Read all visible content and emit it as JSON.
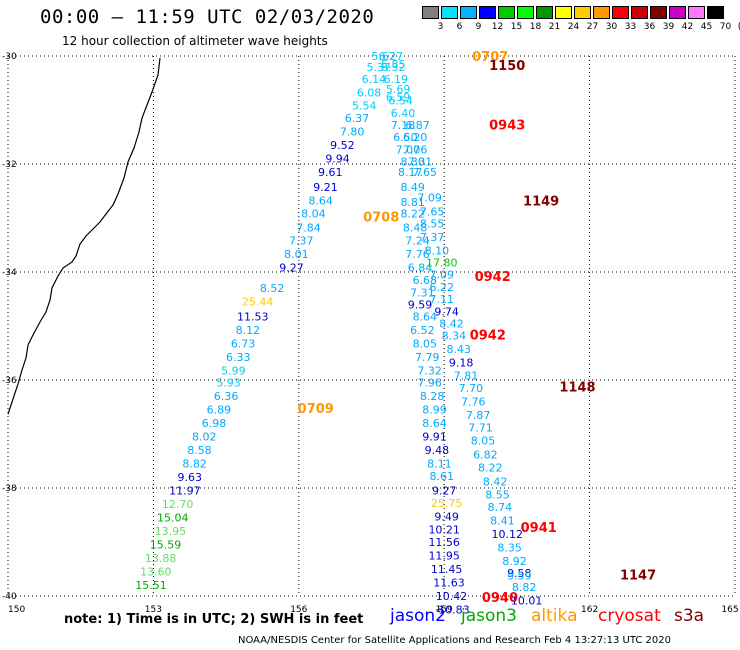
{
  "title": "00:00 – 11:59 UTC 02/03/2020",
  "subtitle": "12 hour collection of altimeter wave heights",
  "colorbar": {
    "labels": [
      "3",
      "6",
      "9",
      "12",
      "15",
      "18",
      "21",
      "24",
      "27",
      "30",
      "33",
      "36",
      "39",
      "42",
      "45",
      "70",
      "(ft)"
    ],
    "colors": [
      "#7f7f7f",
      "#00e5ff",
      "#00b4ff",
      "#0000ff",
      "#00cc00",
      "#00ff00",
      "#009900",
      "#ffff00",
      "#ffcc00",
      "#ff9900",
      "#ff0000",
      "#cc0000",
      "#800000",
      "#cc00cc",
      "#ff77ff",
      "#000000"
    ]
  },
  "footer": {
    "note": "note:  1) Time is in UTC;  2) SWH is in feet",
    "missions": [
      {
        "name": "jason2",
        "color": "#0000ff"
      },
      {
        "name": "jason3",
        "color": "#00aa00"
      },
      {
        "name": "altika",
        "color": "#ff9900"
      },
      {
        "name": "cryosat",
        "color": "#ff0000"
      },
      {
        "name": "s3a",
        "color": "#800000"
      }
    ],
    "credit": "NOAA/NESDIS Center for Satellite Applications and Research     Feb  4 13:27:13 UTC 2020"
  },
  "chart_data": {
    "type": "scatter",
    "xlim": [
      150,
      165
    ],
    "ylim": [
      -40,
      -30
    ],
    "x_ticks": [
      "150",
      "153",
      "156",
      "159",
      "162",
      "165"
    ],
    "y_ticks": [
      "-30",
      "-32",
      "-34",
      "-36",
      "-38",
      "-40"
    ],
    "grid": true,
    "track_labels": [
      {
        "text": "0707",
        "lon": 159.95,
        "lat": -30.0,
        "color": "#ff9900"
      },
      {
        "text": "1150",
        "lon": 160.3,
        "lat": -30.17,
        "color": "#800000"
      },
      {
        "text": "0943",
        "lon": 160.3,
        "lat": -31.27,
        "color": "#ff0000"
      },
      {
        "text": "1149",
        "lon": 161.0,
        "lat": -32.68,
        "color": "#800000"
      },
      {
        "text": "0708",
        "lon": 157.7,
        "lat": -32.97,
        "color": "#ff9900"
      },
      {
        "text": "0942",
        "lon": 160.0,
        "lat": -34.07,
        "color": "#ff0000"
      },
      {
        "text": "0942",
        "lon": 159.9,
        "lat": -35.16,
        "color": "#ff0000"
      },
      {
        "text": "1148",
        "lon": 161.75,
        "lat": -36.12,
        "color": "#800000"
      },
      {
        "text": "0709",
        "lon": 156.35,
        "lat": -36.52,
        "color": "#ff9900"
      },
      {
        "text": "0941",
        "lon": 160.95,
        "lat": -38.72,
        "color": "#ff0000"
      },
      {
        "text": "1147",
        "lon": 163.0,
        "lat": -39.6,
        "color": "#800000"
      },
      {
        "text": "0940",
        "lon": 160.15,
        "lat": -40.02,
        "color": "#ff0000"
      }
    ],
    "points": [
      {
        "lon": 157.75,
        "lat": -30.0,
        "v": "5.62",
        "c": "#00ccff"
      },
      {
        "lon": 157.9,
        "lat": -30.0,
        "v": "6.27",
        "c": "#00ccff"
      },
      {
        "lon": 157.65,
        "lat": -30.2,
        "v": "5.37",
        "c": "#00ccff"
      },
      {
        "lon": 157.95,
        "lat": -30.2,
        "v": "6.32",
        "c": "#00ccff"
      },
      {
        "lon": 157.95,
        "lat": -30.15,
        "v": "5.85",
        "c": "#00ccff"
      },
      {
        "lon": 157.55,
        "lat": -30.43,
        "v": "6.14",
        "c": "#00ccff"
      },
      {
        "lon": 158.0,
        "lat": -30.43,
        "v": "6.19",
        "c": "#00ccff"
      },
      {
        "lon": 157.45,
        "lat": -30.68,
        "v": "6.08",
        "c": "#00ccff"
      },
      {
        "lon": 158.05,
        "lat": -30.61,
        "v": "5.69",
        "c": "#00ccff"
      },
      {
        "lon": 158.05,
        "lat": -30.76,
        "v": "6.59",
        "c": "#00ccff"
      },
      {
        "lon": 157.35,
        "lat": -30.92,
        "v": "5.54",
        "c": "#00ccff"
      },
      {
        "lon": 158.1,
        "lat": -30.82,
        "v": "6.54",
        "c": "#00ccff"
      },
      {
        "lon": 158.15,
        "lat": -31.06,
        "v": "6.40",
        "c": "#00ccff"
      },
      {
        "lon": 157.2,
        "lat": -31.15,
        "v": "6.37",
        "c": "#00aaff"
      },
      {
        "lon": 158.15,
        "lat": -31.28,
        "v": "7.18",
        "c": "#00aaff"
      },
      {
        "lon": 158.45,
        "lat": -31.28,
        "v": "6.87",
        "c": "#00aaff"
      },
      {
        "lon": 157.1,
        "lat": -31.4,
        "v": "7.80",
        "c": "#00aaff"
      },
      {
        "lon": 158.2,
        "lat": -31.5,
        "v": "6.50",
        "c": "#00aaff"
      },
      {
        "lon": 158.4,
        "lat": -31.5,
        "v": "6.20",
        "c": "#00aaff"
      },
      {
        "lon": 156.9,
        "lat": -31.65,
        "v": "9.52",
        "c": "#0000cc"
      },
      {
        "lon": 158.25,
        "lat": -31.73,
        "v": "7.07",
        "c": "#00aaff"
      },
      {
        "lon": 158.4,
        "lat": -31.73,
        "v": "7.06",
        "c": "#00aaff"
      },
      {
        "lon": 156.8,
        "lat": -31.9,
        "v": "9.94",
        "c": "#0000cc"
      },
      {
        "lon": 158.35,
        "lat": -31.95,
        "v": "8.30",
        "c": "#00aaff"
      },
      {
        "lon": 158.5,
        "lat": -31.95,
        "v": "7.31",
        "c": "#00aaff"
      },
      {
        "lon": 156.65,
        "lat": -32.15,
        "v": "9.61",
        "c": "#0000cc"
      },
      {
        "lon": 158.3,
        "lat": -32.15,
        "v": "8.17",
        "c": "#00aaff"
      },
      {
        "lon": 158.6,
        "lat": -32.15,
        "v": "7.65",
        "c": "#00aaff"
      },
      {
        "lon": 156.55,
        "lat": -32.43,
        "v": "9.21",
        "c": "#0000cc"
      },
      {
        "lon": 158.35,
        "lat": -32.43,
        "v": "8.49",
        "c": "#00aaff"
      },
      {
        "lon": 156.45,
        "lat": -32.68,
        "v": "8.64",
        "c": "#00aaff"
      },
      {
        "lon": 158.35,
        "lat": -32.7,
        "v": "8.81",
        "c": "#00aaff"
      },
      {
        "lon": 158.7,
        "lat": -32.62,
        "v": "7.09",
        "c": "#00aaff"
      },
      {
        "lon": 156.3,
        "lat": -32.92,
        "v": "8.04",
        "c": "#00aaff"
      },
      {
        "lon": 158.35,
        "lat": -32.92,
        "v": "8.22",
        "c": "#00aaff"
      },
      {
        "lon": 158.75,
        "lat": -32.88,
        "v": "7.65",
        "c": "#00aaff"
      },
      {
        "lon": 156.2,
        "lat": -33.18,
        "v": "7.84",
        "c": "#00aaff"
      },
      {
        "lon": 158.4,
        "lat": -33.18,
        "v": "8.48",
        "c": "#00aaff"
      },
      {
        "lon": 158.75,
        "lat": -33.1,
        "v": "8.55",
        "c": "#00aaff"
      },
      {
        "lon": 156.05,
        "lat": -33.42,
        "v": "7.37",
        "c": "#00aaff"
      },
      {
        "lon": 158.45,
        "lat": -33.42,
        "v": "7.24",
        "c": "#00aaff"
      },
      {
        "lon": 158.75,
        "lat": -33.35,
        "v": "7.37",
        "c": "#00aaff"
      },
      {
        "lon": 155.95,
        "lat": -33.67,
        "v": "8.01",
        "c": "#00aaff"
      },
      {
        "lon": 158.45,
        "lat": -33.67,
        "v": "7.76",
        "c": "#00aaff"
      },
      {
        "lon": 158.85,
        "lat": -33.6,
        "v": "8.10",
        "c": "#00aaff"
      },
      {
        "lon": 155.85,
        "lat": -33.92,
        "v": "9.27",
        "c": "#0000cc"
      },
      {
        "lon": 158.5,
        "lat": -33.92,
        "v": "6.84",
        "c": "#00aaff"
      },
      {
        "lon": 158.95,
        "lat": -33.82,
        "v": "17.80",
        "c": "#00cc00"
      },
      {
        "lon": 158.6,
        "lat": -34.15,
        "v": "6.68",
        "c": "#00aaff"
      },
      {
        "lon": 158.95,
        "lat": -34.05,
        "v": "7.09",
        "c": "#00aaff"
      },
      {
        "lon": 158.95,
        "lat": -34.28,
        "v": "6.22",
        "c": "#00aaff"
      },
      {
        "lon": 155.45,
        "lat": -34.3,
        "v": "8.52",
        "c": "#00aaff"
      },
      {
        "lon": 158.55,
        "lat": -34.38,
        "v": "7.31",
        "c": "#00aaff"
      },
      {
        "lon": 155.15,
        "lat": -34.55,
        "v": "25.44",
        "c": "#ffcc00"
      },
      {
        "lon": 158.95,
        "lat": -34.5,
        "v": "7.11",
        "c": "#00aaff"
      },
      {
        "lon": 158.5,
        "lat": -34.6,
        "v": "9.59",
        "c": "#0000cc"
      },
      {
        "lon": 159.05,
        "lat": -34.73,
        "v": "9.74",
        "c": "#0000cc"
      },
      {
        "lon": 155.05,
        "lat": -34.82,
        "v": "11.53",
        "c": "#0000cc"
      },
      {
        "lon": 158.6,
        "lat": -34.82,
        "v": "8.64",
        "c": "#00aaff"
      },
      {
        "lon": 159.15,
        "lat": -34.95,
        "v": "8.42",
        "c": "#00aaff"
      },
      {
        "lon": 154.95,
        "lat": -35.07,
        "v": "8.12",
        "c": "#00aaff"
      },
      {
        "lon": 158.55,
        "lat": -35.07,
        "v": "6.52",
        "c": "#00aaff"
      },
      {
        "lon": 159.2,
        "lat": -35.18,
        "v": "8.34",
        "c": "#00aaff"
      },
      {
        "lon": 154.85,
        "lat": -35.32,
        "v": "6.73",
        "c": "#00aaff"
      },
      {
        "lon": 158.6,
        "lat": -35.32,
        "v": "8.05",
        "c": "#00aaff"
      },
      {
        "lon": 159.3,
        "lat": -35.43,
        "v": "8.43",
        "c": "#00aaff"
      },
      {
        "lon": 154.75,
        "lat": -35.57,
        "v": "6.33",
        "c": "#00aaff"
      },
      {
        "lon": 158.65,
        "lat": -35.57,
        "v": "7.79",
        "c": "#00aaff"
      },
      {
        "lon": 159.35,
        "lat": -35.68,
        "v": "9.18",
        "c": "#0000cc"
      },
      {
        "lon": 154.65,
        "lat": -35.82,
        "v": "5.99",
        "c": "#00ccff"
      },
      {
        "lon": 158.7,
        "lat": -35.82,
        "v": "7.32",
        "c": "#00aaff"
      },
      {
        "lon": 159.45,
        "lat": -35.92,
        "v": "7.81",
        "c": "#00aaff"
      },
      {
        "lon": 154.55,
        "lat": -36.05,
        "v": "5.93",
        "c": "#00ccff"
      },
      {
        "lon": 158.7,
        "lat": -36.05,
        "v": "7.96",
        "c": "#00aaff"
      },
      {
        "lon": 154.5,
        "lat": -36.3,
        "v": "6.36",
        "c": "#00aaff"
      },
      {
        "lon": 158.75,
        "lat": -36.3,
        "v": "8.28",
        "c": "#00aaff"
      },
      {
        "lon": 159.55,
        "lat": -36.15,
        "v": "7.70",
        "c": "#00aaff"
      },
      {
        "lon": 154.35,
        "lat": -36.55,
        "v": "6.89",
        "c": "#00aaff"
      },
      {
        "lon": 158.8,
        "lat": -36.55,
        "v": "8.99",
        "c": "#00aaff"
      },
      {
        "lon": 159.6,
        "lat": -36.4,
        "v": "7.76",
        "c": "#00aaff"
      },
      {
        "lon": 154.25,
        "lat": -36.8,
        "v": "6.98",
        "c": "#00aaff"
      },
      {
        "lon": 158.8,
        "lat": -36.8,
        "v": "8.64",
        "c": "#00aaff"
      },
      {
        "lon": 159.7,
        "lat": -36.65,
        "v": "7.87",
        "c": "#00aaff"
      },
      {
        "lon": 154.05,
        "lat": -37.05,
        "v": "8.02",
        "c": "#00aaff"
      },
      {
        "lon": 158.8,
        "lat": -37.05,
        "v": "9.91",
        "c": "#0000cc"
      },
      {
        "lon": 159.75,
        "lat": -36.88,
        "v": "7.71",
        "c": "#00aaff"
      },
      {
        "lon": 153.95,
        "lat": -37.3,
        "v": "8.58",
        "c": "#00aaff"
      },
      {
        "lon": 158.85,
        "lat": -37.3,
        "v": "9.48",
        "c": "#0000cc"
      },
      {
        "lon": 159.8,
        "lat": -37.12,
        "v": "8.05",
        "c": "#00aaff"
      },
      {
        "lon": 153.85,
        "lat": -37.55,
        "v": "8.82",
        "c": "#00aaff"
      },
      {
        "lon": 158.9,
        "lat": -37.55,
        "v": "8.11",
        "c": "#00aaff"
      },
      {
        "lon": 159.85,
        "lat": -37.38,
        "v": "6.82",
        "c": "#00aaff"
      },
      {
        "lon": 153.75,
        "lat": -37.8,
        "v": "9.63",
        "c": "#0000cc"
      },
      {
        "lon": 158.95,
        "lat": -37.78,
        "v": "8.61",
        "c": "#00aaff"
      },
      {
        "lon": 159.95,
        "lat": -37.62,
        "v": "8.22",
        "c": "#00aaff"
      },
      {
        "lon": 153.65,
        "lat": -38.05,
        "v": "11.97",
        "c": "#0000cc"
      },
      {
        "lon": 159.0,
        "lat": -38.05,
        "v": "9.27",
        "c": "#0000cc"
      },
      {
        "lon": 160.05,
        "lat": -37.88,
        "v": "8.42",
        "c": "#00aaff"
      },
      {
        "lon": 159.05,
        "lat": -38.28,
        "v": "25.75",
        "c": "#ffcc00"
      },
      {
        "lon": 160.1,
        "lat": -38.12,
        "v": "8.55",
        "c": "#00aaff"
      },
      {
        "lon": 153.5,
        "lat": -38.3,
        "v": "12.70",
        "c": "#66dd66"
      },
      {
        "lon": 159.05,
        "lat": -38.53,
        "v": "9.49",
        "c": "#0000cc"
      },
      {
        "lon": 160.15,
        "lat": -38.35,
        "v": "8.74",
        "c": "#00aaff"
      },
      {
        "lon": 153.4,
        "lat": -38.55,
        "v": "15.04",
        "c": "#00aa00"
      },
      {
        "lon": 159.0,
        "lat": -38.77,
        "v": "10.21",
        "c": "#0000cc"
      },
      {
        "lon": 160.2,
        "lat": -38.6,
        "v": "8.41",
        "c": "#00aaff"
      },
      {
        "lon": 153.35,
        "lat": -38.8,
        "v": "13.95",
        "c": "#66dd66"
      },
      {
        "lon": 159.0,
        "lat": -39.0,
        "v": "11.56",
        "c": "#0000cc"
      },
      {
        "lon": 160.3,
        "lat": -38.85,
        "v": "10.12",
        "c": "#0000cc"
      },
      {
        "lon": 153.25,
        "lat": -39.05,
        "v": "15.59",
        "c": "#00aa00"
      },
      {
        "lon": 159.0,
        "lat": -39.25,
        "v": "11.95",
        "c": "#0000cc"
      },
      {
        "lon": 160.35,
        "lat": -39.1,
        "v": "8.35",
        "c": "#00aaff"
      },
      {
        "lon": 153.15,
        "lat": -39.3,
        "v": "13.88",
        "c": "#66dd66"
      },
      {
        "lon": 159.05,
        "lat": -39.5,
        "v": "11.45",
        "c": "#0000cc"
      },
      {
        "lon": 160.45,
        "lat": -39.35,
        "v": "8.92",
        "c": "#00aaff"
      },
      {
        "lon": 153.05,
        "lat": -39.55,
        "v": "13.60",
        "c": "#66dd66"
      },
      {
        "lon": 159.1,
        "lat": -39.75,
        "v": "11.63",
        "c": "#0000cc"
      },
      {
        "lon": 160.55,
        "lat": -39.57,
        "v": "9.58",
        "c": "#0000cc"
      },
      {
        "lon": 160.55,
        "lat": -39.62,
        "v": "9.59",
        "c": "#00aaff"
      },
      {
        "lon": 152.95,
        "lat": -39.8,
        "v": "15.51",
        "c": "#00aa00"
      },
      {
        "lon": 159.15,
        "lat": -40.0,
        "v": "10.42",
        "c": "#0000cc"
      },
      {
        "lon": 160.65,
        "lat": -39.83,
        "v": "8.82",
        "c": "#00aaff"
      },
      {
        "lon": 159.2,
        "lat": -40.25,
        "v": "10.83",
        "c": "#0000cc"
      },
      {
        "lon": 160.7,
        "lat": -40.08,
        "v": "10.01",
        "c": "#0000cc"
      }
    ]
  }
}
